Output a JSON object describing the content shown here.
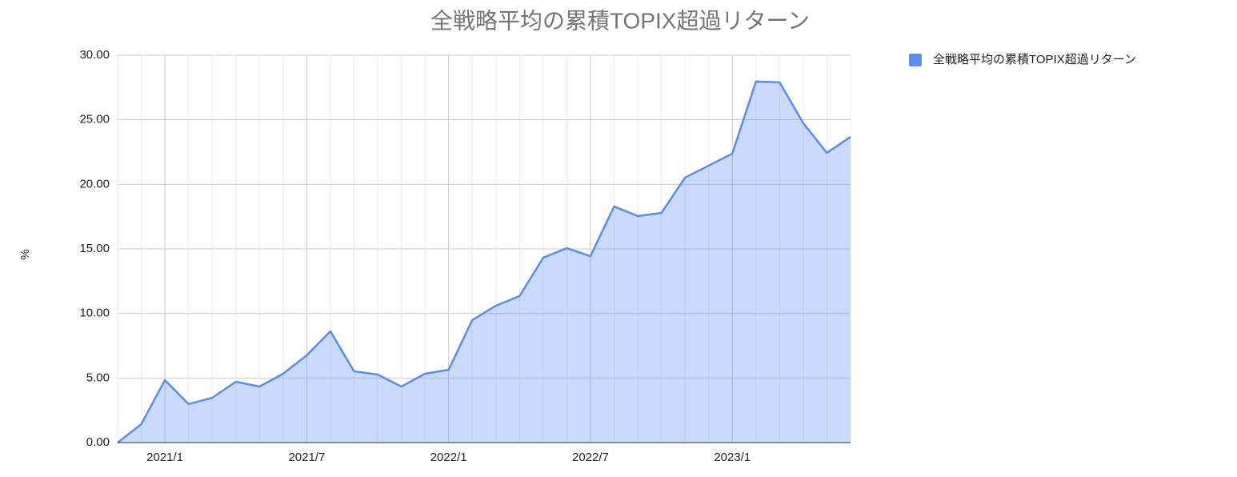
{
  "chart_data": {
    "type": "area",
    "title": "全戦略平均の累積TOPIX超過リターン",
    "y_label": "%",
    "categories": [
      null,
      null,
      "2021/1",
      null,
      null,
      null,
      null,
      null,
      "2021/7",
      null,
      null,
      null,
      null,
      null,
      "2022/1",
      null,
      null,
      null,
      null,
      null,
      "2022/7",
      null,
      null,
      null,
      null,
      null,
      "2023/1",
      null,
      null,
      null,
      null,
      null
    ],
    "series": [
      {
        "name": "全戦略平均の累積TOPIX超過リターン",
        "color": "#5b8dee",
        "values": [
          0,
          1.43,
          4.84,
          2.98,
          3.47,
          4.71,
          4.34,
          5.33,
          6.76,
          8.62,
          5.52,
          5.27,
          4.34,
          5.33,
          5.64,
          9.49,
          10.6,
          11.35,
          14.32,
          15.06,
          14.44,
          18.29,
          17.54,
          17.79,
          20.52,
          21.45,
          22.38,
          27.96,
          27.9,
          24.74,
          22.44,
          23.68
        ]
      }
    ],
    "ylim": [
      0,
      30
    ],
    "yticks": [
      {
        "value": 0,
        "label": "0.00"
      },
      {
        "value": 5,
        "label": "5.00"
      },
      {
        "value": 10,
        "label": "10.00"
      },
      {
        "value": 15,
        "label": "15.00"
      },
      {
        "value": 20,
        "label": "20.00"
      },
      {
        "value": 25,
        "label": "25.00"
      },
      {
        "value": 30,
        "label": "30.00"
      }
    ],
    "grid": true,
    "legend": "right"
  }
}
